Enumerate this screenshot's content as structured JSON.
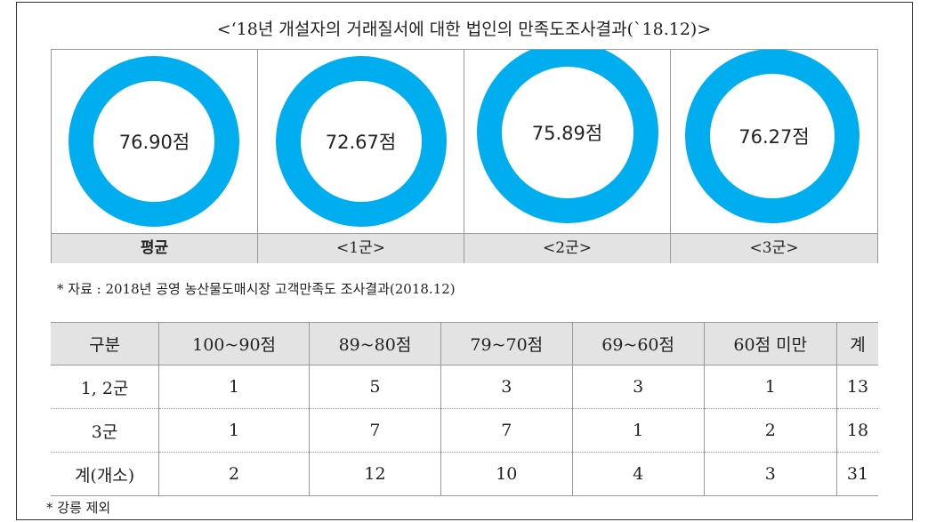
{
  "title": "<‘18년 개설자의 거래질서에 대한 법인의 만족도조사결과(`18.12)>",
  "cards": [
    {
      "score": "76.90점",
      "label": "평균"
    },
    {
      "score": "72.67점",
      "label": "<1군>"
    },
    {
      "score": "75.89점",
      "label": "<2군>"
    },
    {
      "score": "76.27점",
      "label": "<3군>"
    }
  ],
  "source_note": "* 자료 : 2018년 공영 농산물도매시장 고객만족도 조사결과(2018.12)",
  "table": {
    "header": [
      "구분",
      "100~90점",
      "89~80점",
      "79~70점",
      "69~60점",
      "60점 미만",
      "계"
    ],
    "rows": [
      [
        "1, 2군",
        "1",
        "5",
        "3",
        "3",
        "1",
        "13"
      ],
      [
        "3군",
        "1",
        "7",
        "7",
        "1",
        "2",
        "18"
      ],
      [
        "계(개소)",
        "2",
        "12",
        "10",
        "4",
        "3",
        "31"
      ]
    ]
  },
  "footnote": "* 강릉 제외"
}
